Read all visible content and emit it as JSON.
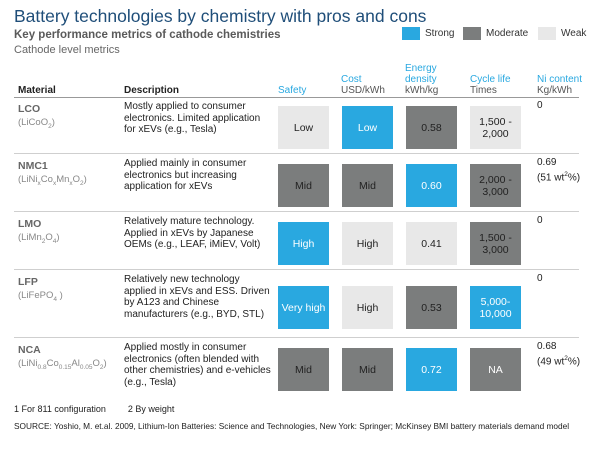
{
  "title": "Battery technologies by chemistry with pros and cons",
  "subtitle": "Key performance metrics of cathode chemistries",
  "subsubtitle": "Cathode level metrics",
  "legend": [
    {
      "label": "Strong",
      "color": "#29a8e0"
    },
    {
      "label": "Moderate",
      "color": "#7b7d7d"
    },
    {
      "label": "Weak",
      "color": "#e8e8e8"
    }
  ],
  "columns": {
    "material": "Material",
    "description": "Description",
    "safety": "Safety",
    "cost": "Cost",
    "cost_unit": "USD/kWh",
    "energy": "Energy",
    "energy2": "density",
    "energy_unit": "kWh/kg",
    "cycle": "Cycle life",
    "cycle_unit": "Times",
    "ni": "Ni content",
    "ni_unit": "Kg/kWh"
  },
  "rows": [
    {
      "name": "LCO",
      "formula": [
        "(LiCoO",
        "2",
        ")"
      ],
      "description": "Mostly applied to consumer electronics. Limited application for xEVs (e.g., Tesla)",
      "cells": [
        [
          "Low",
          "weak"
        ],
        [
          "Low",
          "strong"
        ],
        [
          "0.58",
          "moderate"
        ],
        [
          "1,500 - 2,000",
          "weak"
        ]
      ],
      "ni_line1": "0",
      "ni_line2": "",
      "ni_line2_sup": ""
    },
    {
      "name": "NMC1",
      "formula": [
        "(LiNi",
        "x",
        "Co",
        "x",
        "Mn",
        "x",
        "O",
        "2",
        ")"
      ],
      "description": "Applied mainly in consumer electronics but increasing application for xEVs",
      "cells": [
        [
          "Mid",
          "moderate"
        ],
        [
          "Mid",
          "moderate"
        ],
        [
          "0.60",
          "strong"
        ],
        [
          "2,000 - 3,000",
          "moderate"
        ]
      ],
      "ni_line1": "0.69",
      "ni_line2": "(51 wt",
      "ni_line2_sup": "2",
      "ni_line2_end": "%)"
    },
    {
      "name": "LMO",
      "formula": [
        "(LiMn",
        "2",
        "O",
        "4",
        ")"
      ],
      "description": "Relatively mature technology. Applied in xEVs by Japanese OEMs (e.g., LEAF, iMiEV, Volt)",
      "cells": [
        [
          "High",
          "strong"
        ],
        [
          "High",
          "weak"
        ],
        [
          "0.41",
          "weak"
        ],
        [
          "1,500 - 3,000",
          "moderate"
        ]
      ],
      "ni_line1": "0",
      "ni_line2": "",
      "ni_line2_sup": ""
    },
    {
      "name": "LFP",
      "formula": [
        "(LiFePO",
        "4",
        " )"
      ],
      "description": "Relatively new technology applied in xEVs and ESS. Driven by A123 and Chinese manufacturers (e.g., BYD, STL)",
      "cells": [
        [
          "Very high",
          "strong"
        ],
        [
          "High",
          "weak"
        ],
        [
          "0.53",
          "moderate"
        ],
        [
          "5,000- 10,000",
          "strong"
        ]
      ],
      "ni_line1": "0",
      "ni_line2": "",
      "ni_line2_sup": ""
    },
    {
      "name": "NCA",
      "formula": [
        "(LiNi",
        "0.8",
        "Co",
        "0.15",
        "Al",
        "0.05",
        "O",
        "2",
        ")"
      ],
      "description": "Applied mostly in consumer electronics (often blended with other chemistries) and e-vehicles (e.g., Tesla)",
      "cells": [
        [
          "Mid",
          "moderate"
        ],
        [
          "Mid",
          "moderate"
        ],
        [
          "0.72",
          "strong"
        ],
        [
          "NA",
          "na"
        ]
      ],
      "ni_line1": "0.68",
      "ni_line2": "(49 wt",
      "ni_line2_sup": "2",
      "ni_line2_end": "%)"
    }
  ],
  "footnotes": [
    "1 For 811 configuration",
    "2 By weight"
  ],
  "source": "SOURCE: Yoshio, M. et.al. 2009, Lithium-Ion Batteries: Science and Technologies, New York: Springer; McKinsey BMI battery materials demand model"
}
